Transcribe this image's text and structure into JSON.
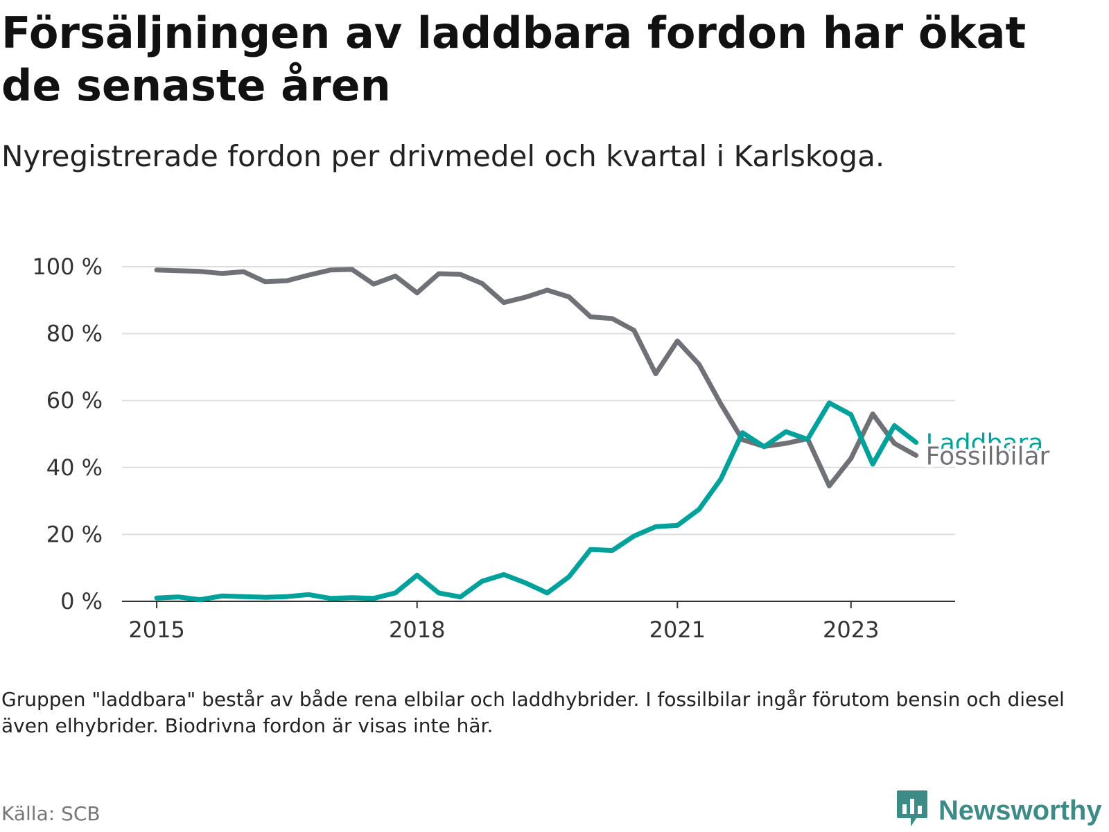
{
  "header": {
    "title": "Försäljningen av laddbara fordon har ökat de senaste åren",
    "subtitle": "Nyregistrerade fordon per drivmedel och kvartal i Karlskoga."
  },
  "footer": {
    "note": "Gruppen \"laddbara\" består av både rena elbilar och laddhybrider. I fossilbilar ingår förutom bensin och diesel även elhybrider. Biodrivna fordon är visas inte här.",
    "source": "Källa: SCB",
    "brand": "Newsworthy"
  },
  "colors": {
    "laddbara": "#00a19a",
    "fossilbilar": "#707077",
    "grid": "#dddddd",
    "axis": "#333333",
    "brand": "#3d8a86"
  },
  "icons": {
    "brand_logo": "bar-chart-speech-bubble-icon"
  },
  "chart_data": {
    "type": "line",
    "title": "Försäljningen av laddbara fordon har ökat de senaste åren",
    "subtitle": "Nyregistrerade fordon per drivmedel och kvartal i Karlskoga.",
    "xlabel": "",
    "ylabel": "",
    "x_start": 2015.0,
    "x_step": 0.25,
    "xlim": [
      2014.6,
      2024.2
    ],
    "ylim": [
      0,
      100
    ],
    "x_ticks": [
      2015,
      2018,
      2021,
      2023
    ],
    "y_ticks": [
      0,
      20,
      40,
      60,
      80,
      100
    ],
    "y_tick_labels": [
      "0 %",
      "20 %",
      "40 %",
      "60 %",
      "80 %",
      "100 %"
    ],
    "grid": true,
    "legend": "inline labels at line ends",
    "series": [
      {
        "name": "Laddbara",
        "key": "laddbara",
        "values": [
          1,
          1.3,
          0.5,
          1.6,
          1.4,
          1.2,
          1.4,
          2,
          0.9,
          1.1,
          0.9,
          2.5,
          7.8,
          2.5,
          1.3,
          6,
          8,
          5.5,
          2.5,
          7.3,
          15.5,
          15.2,
          19.5,
          22.3,
          22.7,
          27.5,
          36.5,
          50.4,
          46.2,
          50.7,
          48.4,
          59.3,
          55.8,
          41,
          52.5,
          47.5
        ]
      },
      {
        "name": "Fossilbilar",
        "key": "fossilbilar",
        "values": [
          99,
          98.8,
          98.6,
          98,
          98.5,
          95.5,
          95.8,
          97.5,
          99,
          99.2,
          94.8,
          97.2,
          92.2,
          97.9,
          97.7,
          95,
          89.3,
          90.9,
          93,
          91,
          85,
          84.5,
          81,
          68,
          77.8,
          70.8,
          59,
          48.3,
          46.3,
          47.2,
          48.6,
          34.5,
          42.7,
          56,
          47.2,
          43.6
        ]
      }
    ]
  }
}
